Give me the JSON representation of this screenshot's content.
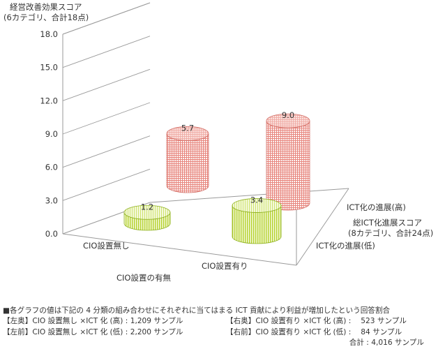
{
  "chart_data": {
    "type": "bar",
    "style": "3d-cylinder",
    "ylabel": [
      "経営改善効果スコア",
      "(6カテゴリ、合計18点)"
    ],
    "y_ticks": [
      "0.0",
      "3.0",
      "6.0",
      "9.0",
      "12.0",
      "15.0",
      "18.0"
    ],
    "ylim": [
      0,
      18
    ],
    "xlabel": "CIO設置の有無",
    "x_categories": [
      "CIO設置無し",
      "CIO設置有り"
    ],
    "zlabel": [
      "総ICT化進展スコア",
      "(8カテゴリ、合計24点)"
    ],
    "z_categories": [
      "ICT化の進展(高)",
      "ICT化の進展(低)"
    ],
    "grid": true,
    "colors": {
      "high_depth": "#e8877f",
      "low_front": "#b5d22e"
    },
    "series": [
      {
        "x": "CIO設置無し",
        "z": "ICT化の進展(高)",
        "value": 5.7,
        "label": "5.7"
      },
      {
        "x": "CIO設置有り",
        "z": "ICT化の進展(高)",
        "value": 9.0,
        "label": "9.0"
      },
      {
        "x": "CIO設置無し",
        "z": "ICT化の進展(低)",
        "value": 1.2,
        "label": "1.2"
      },
      {
        "x": "CIO設置有り",
        "z": "ICT化の進展(低)",
        "value": 3.4,
        "label": "3.4"
      }
    ]
  },
  "notes": {
    "heading": "■各グラフの値は下記の 4 分類の組み合わせにそれぞれに当てはまる ICT 貢献により利益が増加したという回答割合",
    "rows": [
      {
        "left": "【左奥】CIO 設置無し ×ICT 化 (高) : 1,209 サンプル",
        "right": "【右奥】CIO 設置有り ×ICT 化 (高) :　 523 サンプル"
      },
      {
        "left": "【左前】CIO 設置無し ×ICT 化 (低) : 2,200 サンプル",
        "right": "【右前】CIO 設置有り ×ICT 化 (低) :　  84 サンプル"
      }
    ],
    "total": "合計 : 4,016 サンプル"
  }
}
